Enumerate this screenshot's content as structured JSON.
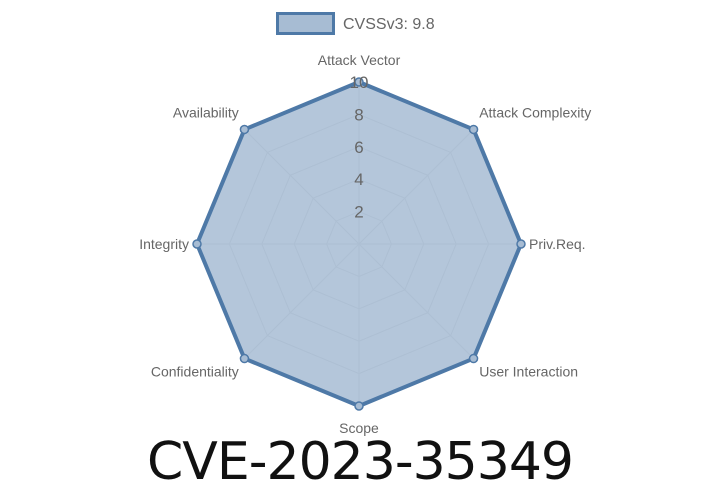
{
  "chart_data": {
    "type": "radar",
    "title": "CVE-2023-35349",
    "categories": [
      "Attack Vector",
      "Attack Complexity",
      "Priv.Req.",
      "User Interaction",
      "Scope",
      "Confidentiality",
      "Integrity",
      "Availability"
    ],
    "series": [
      {
        "name": "CVSSv3: 9.8",
        "values": [
          10,
          10,
          10,
          10,
          10,
          10,
          10,
          10
        ]
      }
    ],
    "rlim": [
      0,
      10
    ],
    "ticks": [
      "2",
      "4",
      "6",
      "8",
      "10"
    ],
    "grid": true,
    "legend": "top",
    "colors": {
      "stroke": "#4e79a7",
      "fill": "#a7bcd3",
      "grid": "#cccccc"
    }
  }
}
